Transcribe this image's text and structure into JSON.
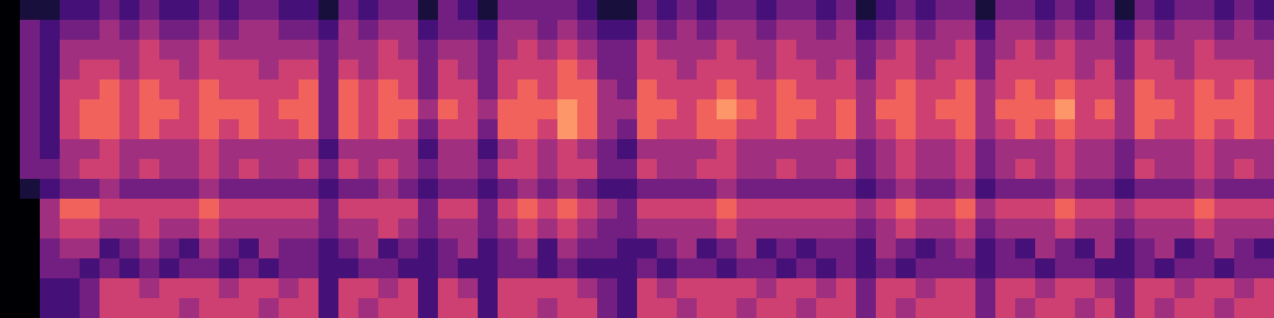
{
  "chart_data": {
    "type": "heatmap",
    "tick_labels": false,
    "cells": [
      [
        0,
        1,
        1,
        2,
        2,
        3,
        2,
        3,
        2,
        2,
        3,
        2,
        3,
        3,
        2,
        2,
        1,
        3,
        2,
        3,
        3,
        1,
        3,
        2,
        1,
        3,
        3,
        3,
        3,
        2,
        1,
        1,
        3,
        2,
        3,
        2,
        3,
        3,
        2,
        3,
        3,
        2,
        3,
        1,
        2,
        3,
        2,
        3,
        3,
        1,
        3,
        3,
        2,
        3,
        2,
        3,
        1,
        3,
        2,
        3,
        3,
        2,
        3,
        2
      ],
      [
        0,
        3,
        2,
        3,
        3,
        4,
        3,
        4,
        3,
        3,
        4,
        3,
        4,
        4,
        3,
        3,
        2,
        4,
        3,
        4,
        4,
        2,
        3,
        3,
        2,
        4,
        4,
        3,
        4,
        3,
        2,
        2,
        4,
        3,
        4,
        3,
        4,
        4,
        3,
        4,
        4,
        3,
        4,
        2,
        3,
        4,
        3,
        4,
        4,
        2,
        4,
        4,
        3,
        4,
        3,
        4,
        2,
        4,
        3,
        4,
        4,
        3,
        4,
        3
      ],
      [
        0,
        3,
        2,
        4,
        4,
        4,
        4,
        5,
        4,
        4,
        5,
        4,
        4,
        4,
        4,
        4,
        3,
        4,
        4,
        5,
        4,
        3,
        4,
        4,
        3,
        4,
        5,
        4,
        5,
        4,
        3,
        3,
        5,
        4,
        4,
        4,
        5,
        4,
        4,
        5,
        4,
        4,
        4,
        3,
        4,
        5,
        4,
        4,
        5,
        3,
        4,
        5,
        4,
        5,
        4,
        4,
        3,
        5,
        4,
        4,
        5,
        4,
        4,
        4
      ],
      [
        0,
        3,
        2,
        4,
        5,
        5,
        4,
        5,
        5,
        4,
        5,
        5,
        5,
        4,
        5,
        5,
        3,
        5,
        4,
        5,
        5,
        3,
        5,
        4,
        3,
        5,
        5,
        5,
        6,
        5,
        3,
        3,
        5,
        5,
        4,
        5,
        5,
        5,
        4,
        5,
        5,
        4,
        5,
        3,
        5,
        5,
        4,
        5,
        5,
        3,
        5,
        5,
        5,
        5,
        4,
        5,
        3,
        5,
        5,
        4,
        5,
        5,
        5,
        4
      ],
      [
        0,
        3,
        2,
        5,
        5,
        6,
        5,
        6,
        5,
        5,
        6,
        5,
        5,
        5,
        5,
        6,
        3,
        6,
        5,
        6,
        5,
        3,
        5,
        5,
        3,
        5,
        6,
        5,
        6,
        6,
        4,
        3,
        6,
        5,
        5,
        5,
        6,
        5,
        5,
        6,
        5,
        5,
        5,
        4,
        5,
        6,
        5,
        5,
        6,
        4,
        5,
        6,
        5,
        6,
        5,
        5,
        4,
        6,
        5,
        5,
        6,
        5,
        6,
        5
      ],
      [
        0,
        3,
        2,
        5,
        6,
        6,
        5,
        6,
        6,
        5,
        6,
        6,
        6,
        5,
        6,
        6,
        3,
        6,
        5,
        6,
        6,
        4,
        6,
        5,
        4,
        6,
        6,
        6,
        7,
        6,
        4,
        4,
        6,
        6,
        5,
        6,
        7,
        6,
        5,
        6,
        6,
        5,
        6,
        4,
        6,
        6,
        5,
        6,
        6,
        4,
        6,
        6,
        6,
        7,
        5,
        6,
        4,
        6,
        6,
        5,
        6,
        6,
        6,
        5
      ],
      [
        0,
        3,
        2,
        5,
        6,
        6,
        5,
        6,
        5,
        5,
        6,
        5,
        6,
        5,
        5,
        6,
        3,
        6,
        5,
        6,
        5,
        3,
        5,
        5,
        3,
        6,
        6,
        5,
        7,
        6,
        4,
        3,
        6,
        5,
        5,
        6,
        6,
        5,
        5,
        6,
        5,
        5,
        6,
        4,
        5,
        6,
        5,
        5,
        6,
        4,
        5,
        6,
        5,
        6,
        5,
        5,
        4,
        6,
        5,
        5,
        6,
        5,
        6,
        5
      ],
      [
        0,
        3,
        2,
        4,
        4,
        5,
        4,
        4,
        4,
        4,
        5,
        4,
        4,
        4,
        4,
        4,
        2,
        4,
        4,
        4,
        4,
        2,
        4,
        4,
        2,
        4,
        5,
        4,
        5,
        4,
        3,
        2,
        4,
        4,
        4,
        4,
        5,
        4,
        4,
        4,
        4,
        4,
        4,
        3,
        4,
        5,
        4,
        4,
        5,
        3,
        4,
        4,
        4,
        5,
        4,
        4,
        3,
        4,
        4,
        4,
        5,
        4,
        4,
        4
      ],
      [
        0,
        3,
        3,
        4,
        5,
        5,
        4,
        5,
        4,
        4,
        5,
        4,
        5,
        4,
        4,
        5,
        3,
        5,
        4,
        5,
        4,
        3,
        4,
        4,
        3,
        5,
        5,
        4,
        5,
        5,
        3,
        3,
        5,
        4,
        4,
        5,
        5,
        4,
        4,
        5,
        4,
        4,
        5,
        3,
        4,
        5,
        4,
        4,
        5,
        3,
        4,
        5,
        4,
        5,
        4,
        4,
        3,
        5,
        4,
        4,
        5,
        4,
        5,
        4
      ],
      [
        0,
        1,
        2,
        3,
        3,
        4,
        3,
        3,
        3,
        3,
        4,
        3,
        3,
        3,
        3,
        3,
        2,
        3,
        3,
        4,
        3,
        2,
        3,
        3,
        2,
        3,
        4,
        3,
        4,
        3,
        2,
        2,
        3,
        3,
        3,
        3,
        4,
        3,
        3,
        3,
        3,
        3,
        3,
        2,
        3,
        4,
        3,
        3,
        4,
        2,
        3,
        3,
        3,
        4,
        3,
        3,
        2,
        3,
        3,
        3,
        4,
        3,
        3,
        3
      ],
      [
        0,
        0,
        4,
        6,
        6,
        5,
        5,
        5,
        5,
        5,
        6,
        5,
        5,
        5,
        5,
        5,
        3,
        5,
        5,
        5,
        5,
        3,
        5,
        5,
        3,
        5,
        6,
        5,
        6,
        5,
        4,
        3,
        5,
        5,
        5,
        5,
        6,
        5,
        5,
        5,
        5,
        5,
        5,
        4,
        5,
        6,
        5,
        5,
        6,
        4,
        5,
        5,
        5,
        6,
        5,
        5,
        4,
        5,
        5,
        5,
        6,
        5,
        5,
        5
      ],
      [
        0,
        0,
        4,
        5,
        5,
        4,
        4,
        5,
        4,
        4,
        5,
        4,
        4,
        4,
        4,
        4,
        3,
        4,
        4,
        5,
        4,
        3,
        4,
        4,
        3,
        4,
        5,
        4,
        5,
        4,
        3,
        3,
        4,
        4,
        4,
        4,
        5,
        4,
        4,
        4,
        4,
        4,
        4,
        3,
        4,
        5,
        4,
        4,
        5,
        3,
        4,
        4,
        4,
        5,
        4,
        4,
        3,
        4,
        4,
        4,
        5,
        4,
        4,
        4
      ],
      [
        0,
        0,
        3,
        4,
        4,
        2,
        3,
        4,
        3,
        2,
        4,
        3,
        2,
        4,
        3,
        3,
        2,
        3,
        4,
        2,
        3,
        2,
        3,
        4,
        2,
        3,
        4,
        2,
        4,
        3,
        3,
        2,
        2,
        3,
        4,
        2,
        3,
        4,
        2,
        3,
        2,
        3,
        3,
        2,
        4,
        3,
        2,
        3,
        4,
        2,
        3,
        2,
        4,
        3,
        2,
        4,
        2,
        3,
        4,
        2,
        3,
        4,
        3,
        2
      ],
      [
        0,
        0,
        3,
        3,
        2,
        3,
        2,
        3,
        2,
        3,
        3,
        2,
        3,
        2,
        3,
        3,
        2,
        2,
        3,
        3,
        2,
        2,
        3,
        2,
        2,
        3,
        3,
        2,
        3,
        2,
        2,
        2,
        3,
        2,
        3,
        3,
        2,
        3,
        3,
        2,
        3,
        2,
        3,
        2,
        3,
        2,
        3,
        3,
        3,
        2,
        3,
        3,
        2,
        3,
        3,
        2,
        2,
        3,
        2,
        3,
        3,
        2,
        3,
        3
      ],
      [
        0,
        0,
        2,
        2,
        3,
        5,
        5,
        4,
        5,
        5,
        5,
        4,
        5,
        5,
        4,
        5,
        2,
        5,
        5,
        4,
        5,
        2,
        5,
        4,
        2,
        5,
        5,
        5,
        5,
        4,
        3,
        2,
        5,
        4,
        5,
        5,
        5,
        5,
        4,
        5,
        5,
        4,
        5,
        3,
        5,
        5,
        4,
        5,
        5,
        3,
        5,
        5,
        4,
        5,
        5,
        4,
        3,
        5,
        5,
        4,
        5,
        5,
        4,
        5
      ],
      [
        0,
        0,
        2,
        2,
        3,
        5,
        5,
        5,
        5,
        4,
        5,
        5,
        5,
        4,
        5,
        5,
        2,
        5,
        4,
        5,
        5,
        2,
        5,
        5,
        2,
        5,
        5,
        4,
        5,
        5,
        3,
        2,
        5,
        5,
        4,
        5,
        5,
        4,
        5,
        5,
        4,
        5,
        5,
        3,
        5,
        4,
        5,
        5,
        5,
        3,
        5,
        4,
        5,
        5,
        4,
        5,
        3,
        5,
        4,
        5,
        5,
        4,
        5,
        5
      ]
    ]
  }
}
